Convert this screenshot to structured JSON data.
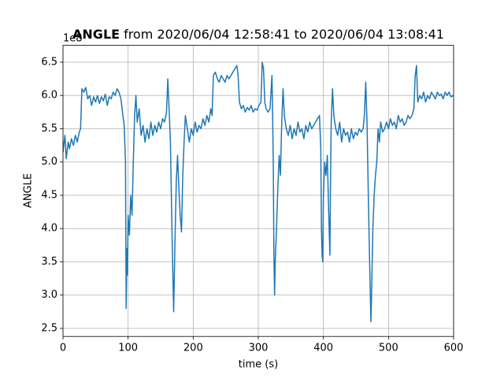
{
  "chart_data": {
    "type": "line",
    "title_bold": "ANGLE",
    "title": "from 2020/06/04 12:58:41 to 2020/06/04 13:08:41",
    "y_offset_text": "1e8",
    "xlabel": "time (s)",
    "ylabel": "ANGLE",
    "grid": true,
    "xlim": [
      0,
      600
    ],
    "ylim": [
      2.379,
      6.753
    ],
    "xticks": [
      0,
      100,
      200,
      300,
      400,
      500,
      600
    ],
    "yticks": [
      2.5,
      {
        "value": 3,
        "label": "3.0"
      },
      3.5,
      {
        "value": 4,
        "label": "4.0"
      },
      4.5,
      {
        "value": 5,
        "label": "5.0"
      },
      5.5,
      {
        "value": 6,
        "label": "6.0"
      },
      6.5
    ],
    "x": [
      0,
      3,
      5,
      8,
      10,
      13,
      16,
      19,
      22,
      25,
      27,
      29,
      32,
      35,
      38,
      41,
      44,
      47,
      50,
      53,
      56,
      59,
      62,
      65,
      68,
      71,
      74,
      77,
      80,
      83,
      86,
      89,
      92,
      94,
      96,
      97,
      98,
      99,
      100,
      102,
      104,
      106,
      108,
      110,
      112,
      114,
      117,
      120,
      123,
      126,
      129,
      132,
      135,
      138,
      141,
      144,
      147,
      150,
      153,
      156,
      159,
      161,
      163,
      165,
      167,
      169,
      170,
      172,
      174,
      176,
      178,
      180,
      182,
      184,
      186,
      188,
      191,
      194,
      197,
      200,
      203,
      206,
      209,
      212,
      215,
      218,
      221,
      224,
      227,
      229,
      231,
      234,
      237,
      240,
      243,
      246,
      249,
      252,
      255,
      258,
      261,
      264,
      267,
      269,
      271,
      274,
      277,
      280,
      283,
      286,
      289,
      292,
      295,
      298,
      301,
      304,
      306,
      308,
      310,
      312,
      315,
      318,
      321,
      322,
      323,
      324,
      325,
      326,
      328,
      330,
      332,
      334,
      336,
      338,
      340,
      343,
      346,
      349,
      352,
      355,
      358,
      361,
      364,
      367,
      370,
      373,
      376,
      379,
      382,
      385,
      388,
      391,
      394,
      396,
      397,
      398,
      399,
      400,
      402,
      404,
      406,
      408,
      410,
      411,
      412,
      414,
      416,
      419,
      422,
      425,
      428,
      431,
      434,
      437,
      440,
      443,
      446,
      449,
      452,
      455,
      458,
      461,
      463,
      465,
      467,
      469,
      471,
      473,
      474,
      476,
      478,
      480,
      482,
      484,
      486,
      488,
      491,
      494,
      497,
      500,
      503,
      506,
      509,
      512,
      515,
      518,
      521,
      524,
      527,
      530,
      533,
      536,
      539,
      541,
      543,
      545,
      548,
      551,
      554,
      557,
      560,
      563,
      566,
      569,
      572,
      575,
      578,
      581,
      584,
      587,
      590,
      593,
      596,
      600
    ],
    "series": [
      {
        "color": "#1f77b4",
        "values": [
          5.15,
          5.4,
          5.05,
          5.3,
          5.2,
          5.35,
          5.25,
          5.4,
          5.3,
          5.45,
          5.5,
          6.1,
          6.05,
          6.12,
          5.95,
          6.0,
          5.85,
          5.98,
          5.9,
          6.0,
          5.88,
          5.98,
          5.92,
          6.02,
          5.85,
          5.98,
          5.95,
          6.05,
          6.0,
          6.1,
          6.05,
          5.95,
          5.7,
          5.55,
          5.0,
          2.8,
          3.7,
          3.3,
          4.2,
          3.9,
          4.5,
          4.2,
          5.0,
          5.7,
          6.0,
          5.6,
          5.8,
          5.4,
          5.55,
          5.3,
          5.5,
          5.35,
          5.6,
          5.4,
          5.55,
          5.45,
          5.6,
          5.5,
          5.65,
          5.6,
          5.75,
          6.25,
          5.8,
          5.3,
          4.2,
          3.2,
          2.75,
          3.8,
          4.7,
          5.1,
          4.6,
          4.2,
          3.95,
          4.8,
          5.3,
          5.7,
          5.5,
          5.3,
          5.5,
          5.4,
          5.6,
          5.45,
          5.55,
          5.5,
          5.65,
          5.55,
          5.7,
          5.6,
          5.8,
          5.7,
          6.3,
          6.35,
          6.25,
          6.2,
          6.3,
          6.25,
          6.2,
          6.3,
          6.25,
          6.3,
          6.35,
          6.4,
          6.45,
          6.3,
          5.9,
          5.8,
          5.85,
          5.75,
          5.82,
          5.78,
          5.85,
          5.75,
          5.8,
          5.78,
          5.85,
          5.9,
          6.5,
          6.4,
          5.9,
          5.8,
          5.75,
          5.8,
          6.3,
          5.7,
          5.0,
          3.6,
          3.0,
          3.5,
          4.0,
          4.6,
          5.1,
          4.8,
          5.6,
          6.1,
          5.7,
          5.5,
          5.4,
          5.55,
          5.35,
          5.5,
          5.4,
          5.6,
          5.45,
          5.5,
          5.35,
          5.55,
          5.45,
          5.6,
          5.5,
          5.55,
          5.6,
          5.65,
          5.7,
          5.2,
          4.0,
          3.6,
          3.5,
          4.5,
          5.0,
          4.8,
          5.1,
          4.3,
          3.6,
          4.8,
          5.6,
          6.1,
          5.7,
          5.5,
          5.4,
          5.6,
          5.3,
          5.5,
          5.4,
          5.45,
          5.3,
          5.5,
          5.35,
          5.45,
          5.4,
          5.5,
          5.45,
          5.5,
          5.7,
          6.2,
          5.6,
          4.5,
          3.5,
          2.6,
          3.0,
          4.0,
          4.5,
          4.8,
          5.0,
          5.5,
          5.3,
          5.6,
          5.45,
          5.5,
          5.6,
          5.5,
          5.65,
          5.55,
          5.6,
          5.5,
          5.7,
          5.6,
          5.65,
          5.55,
          5.6,
          5.7,
          5.65,
          5.7,
          5.8,
          6.3,
          6.45,
          5.9,
          6.0,
          5.95,
          6.05,
          5.9,
          6.0,
          5.95,
          6.05,
          6.0,
          5.95,
          6.05,
          6.0,
          6.02,
          5.95,
          6.05,
          6.0,
          6.05,
          5.98,
          6.0
        ]
      }
    ]
  }
}
